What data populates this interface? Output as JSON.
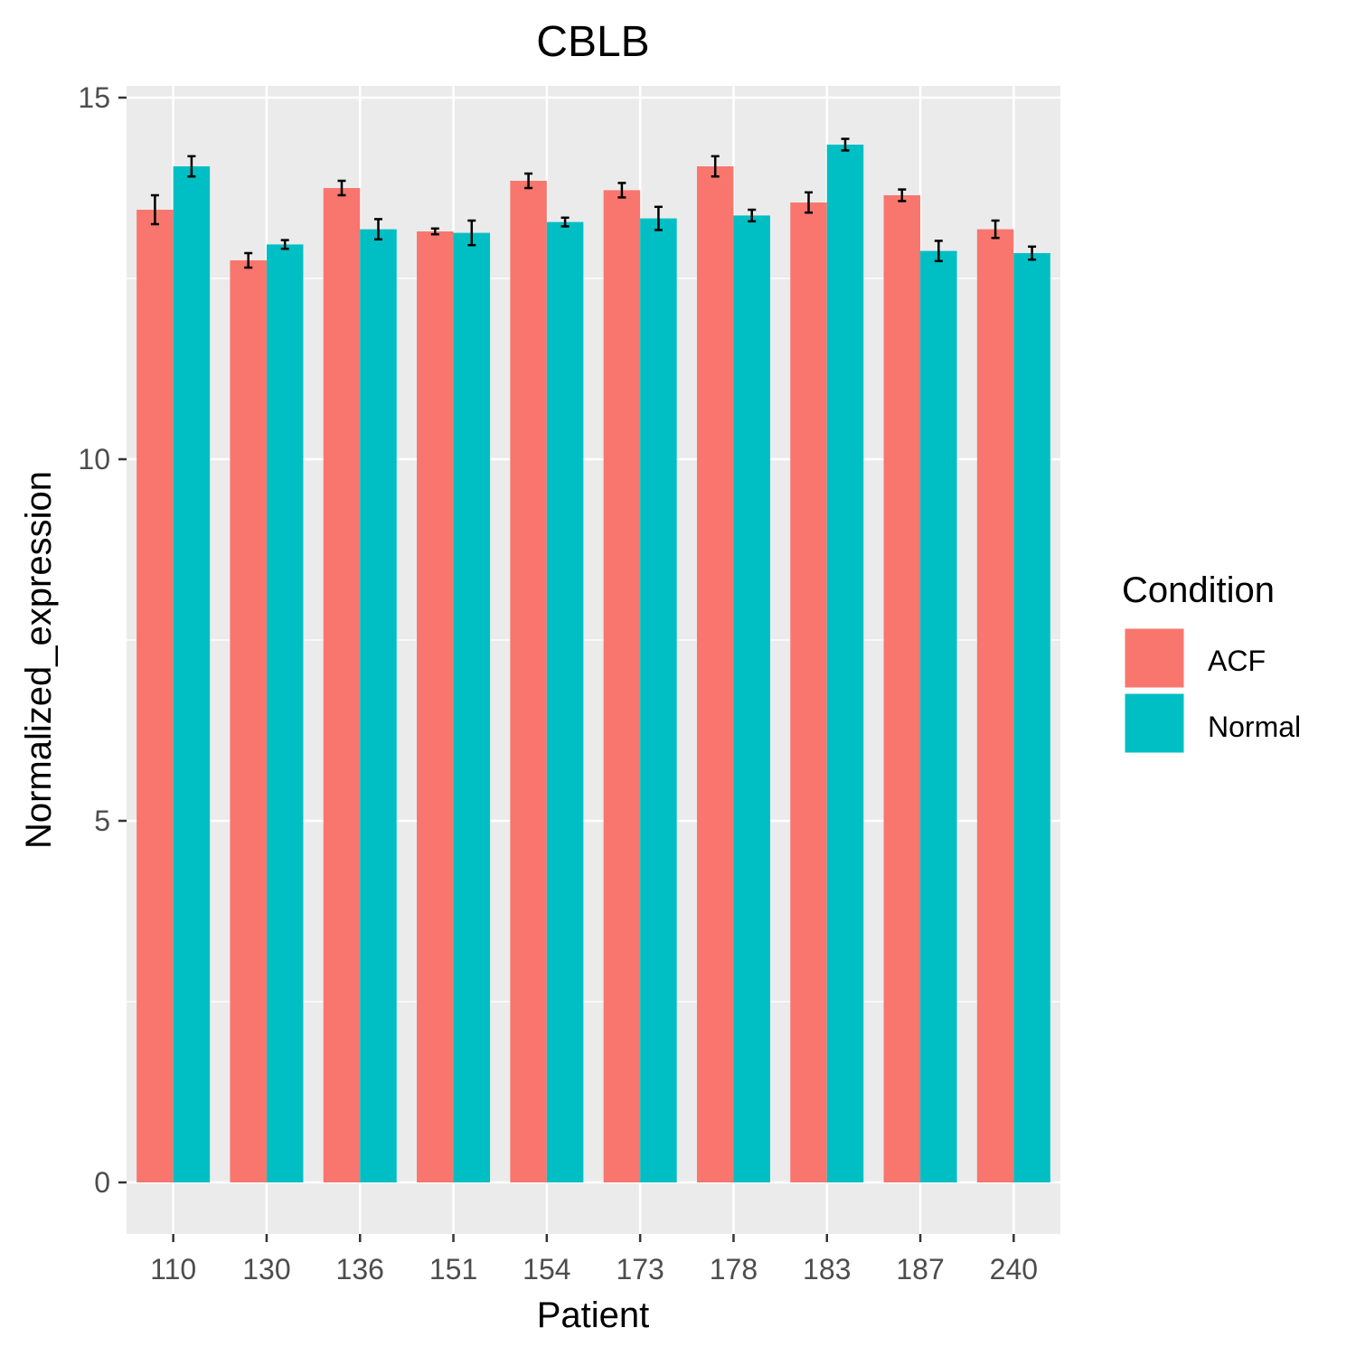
{
  "chart_data": {
    "type": "bar",
    "title": "CBLB",
    "xlabel": "Patient",
    "ylabel": "Normalized_expression",
    "categories": [
      "110",
      "130",
      "136",
      "151",
      "154",
      "173",
      "178",
      "183",
      "187",
      "240"
    ],
    "series": [
      {
        "name": "ACF",
        "color": "#F8766D",
        "values": [
          13.45,
          12.75,
          13.75,
          13.15,
          13.85,
          13.72,
          14.05,
          13.55,
          13.65,
          13.18
        ],
        "errors": [
          0.2,
          0.1,
          0.1,
          0.04,
          0.1,
          0.1,
          0.14,
          0.14,
          0.08,
          0.12
        ]
      },
      {
        "name": "Normal",
        "color": "#00BFC4",
        "values": [
          14.05,
          12.97,
          13.18,
          13.13,
          13.28,
          13.33,
          13.37,
          14.35,
          12.88,
          12.85
        ],
        "errors": [
          0.14,
          0.06,
          0.14,
          0.17,
          0.06,
          0.16,
          0.08,
          0.08,
          0.14,
          0.09
        ]
      }
    ],
    "yticks": [
      0,
      5,
      10,
      15
    ],
    "ylim": [
      -0.68,
      15.1
    ],
    "grid": true,
    "background": "#EBEBEB",
    "legend": {
      "title": "Condition",
      "position": "right"
    }
  }
}
